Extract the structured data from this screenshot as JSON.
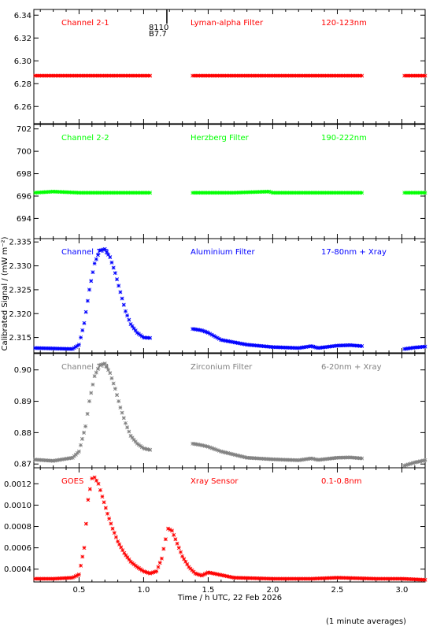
{
  "figure": {
    "ylabel": "Calibrated Signal / (mW m⁻²)",
    "xlabel": "Time / h UTC, 22 Feb 2026",
    "footnote": "(1 minute averages)",
    "xlim": [
      0.15,
      3.18
    ],
    "xticks": [
      "0.5",
      "1.0",
      "1.5",
      "2.0",
      "2.5",
      "3.0"
    ],
    "event_marker": {
      "x": 1.18,
      "labels": [
        "8110",
        "B7.7"
      ]
    }
  },
  "chart_data": [
    {
      "type": "scatter",
      "labels": [
        "Channel 2-1",
        "Lyman-alpha Filter",
        "120-123nm"
      ],
      "color": "#ff0000",
      "ylim": [
        6.245,
        6.345
      ],
      "yticks": [
        "6.34",
        "6.32",
        "6.30",
        "6.28",
        "6.26"
      ],
      "series": [
        {
          "x": [
            0.16,
            0.5,
            0.8,
            1.05
          ],
          "y": [
            6.287,
            6.287,
            6.287,
            6.287
          ]
        },
        {
          "x": [
            1.38,
            1.7,
            2.0,
            2.3,
            2.69
          ],
          "y": [
            6.287,
            6.287,
            6.287,
            6.287,
            6.287
          ]
        },
        {
          "x": [
            3.02,
            3.18
          ],
          "y": [
            6.287,
            6.287
          ]
        }
      ]
    },
    {
      "type": "scatter",
      "labels": [
        "Channel 2-2",
        "Herzberg Filter",
        "190-222nm"
      ],
      "color": "#00ff00",
      "ylim": [
        692.2,
        702.4
      ],
      "yticks": [
        "702",
        "700",
        "698",
        "696",
        "694"
      ],
      "series": [
        {
          "x": [
            0.16,
            0.3,
            0.5,
            0.8,
            1.05
          ],
          "y": [
            696.3,
            696.4,
            696.3,
            696.3,
            696.3
          ]
        },
        {
          "x": [
            1.38,
            1.7,
            1.97,
            2.0,
            2.3,
            2.69
          ],
          "y": [
            696.3,
            696.3,
            696.4,
            696.3,
            696.3,
            696.3
          ]
        },
        {
          "x": [
            3.02,
            3.18
          ],
          "y": [
            696.3,
            696.3
          ]
        }
      ]
    },
    {
      "type": "scatter",
      "labels": [
        "Channel 2-3",
        "Aluminium Filter",
        "17-80nm + Xray"
      ],
      "color": "#0000ff",
      "ylim": [
        2.3118,
        2.3357
      ],
      "yticks": [
        "2.335",
        "2.330",
        "2.325",
        "2.320",
        "2.315"
      ],
      "series": [
        {
          "x": [
            0.16,
            0.3,
            0.45,
            0.5,
            0.54,
            0.58,
            0.62,
            0.66,
            0.7,
            0.74,
            0.78,
            0.82,
            0.86,
            0.9,
            0.95,
            1.0,
            1.05
          ],
          "y": [
            2.3128,
            2.3127,
            2.3126,
            2.3135,
            2.318,
            2.325,
            2.3305,
            2.3332,
            2.3335,
            2.3318,
            2.3285,
            2.3245,
            2.3205,
            2.3178,
            2.316,
            2.315,
            2.3149
          ]
        },
        {
          "x": [
            1.38,
            1.45,
            1.5,
            1.6,
            1.8,
            2.0,
            2.2,
            2.3,
            2.35,
            2.5,
            2.6,
            2.69
          ],
          "y": [
            2.3168,
            2.3165,
            2.316,
            2.3145,
            2.3135,
            2.313,
            2.3128,
            2.3132,
            2.3128,
            2.3133,
            2.3134,
            2.3132
          ]
        },
        {
          "x": [
            3.02,
            3.1,
            3.18
          ],
          "y": [
            2.3126,
            2.3129,
            2.3131
          ]
        }
      ]
    },
    {
      "type": "scatter",
      "labels": [
        "Channel 2-4",
        "Zirconium Filter",
        "6-20nm + Xray"
      ],
      "color": "#808080",
      "ylim": [
        0.8688,
        0.9052
      ],
      "yticks": [
        "0.90",
        "0.89",
        "0.88",
        "0.87"
      ],
      "series": [
        {
          "x": [
            0.16,
            0.3,
            0.45,
            0.5,
            0.55,
            0.58,
            0.62,
            0.66,
            0.7,
            0.74,
            0.78,
            0.82,
            0.86,
            0.9,
            0.95,
            1.0,
            1.05
          ],
          "y": [
            0.8714,
            0.871,
            0.872,
            0.874,
            0.882,
            0.89,
            0.898,
            0.9015,
            0.902,
            0.899,
            0.894,
            0.888,
            0.883,
            0.879,
            0.8765,
            0.875,
            0.8745
          ]
        },
        {
          "x": [
            1.38,
            1.45,
            1.5,
            1.6,
            1.8,
            2.0,
            2.2,
            2.3,
            2.35,
            2.5,
            2.6,
            2.69
          ],
          "y": [
            0.8765,
            0.876,
            0.8755,
            0.874,
            0.872,
            0.8715,
            0.8712,
            0.8718,
            0.8713,
            0.872,
            0.8721,
            0.8718
          ]
        },
        {
          "x": [
            3.02,
            3.1,
            3.18
          ],
          "y": [
            0.8695,
            0.8705,
            0.8712
          ]
        }
      ]
    },
    {
      "type": "scatter",
      "labels": [
        "GOES",
        "Xray Sensor",
        "0.1-0.8nm"
      ],
      "color": "#ff0000",
      "ylim": [
        0.00028,
        0.00135
      ],
      "yticks": [
        "0.0012",
        "0.0010",
        "0.0008",
        "0.0006",
        "0.0004"
      ],
      "series": [
        {
          "x": [
            0.16,
            0.3,
            0.45,
            0.5,
            0.54,
            0.57,
            0.6,
            0.62,
            0.65,
            0.68,
            0.72,
            0.76,
            0.8,
            0.85,
            0.9,
            0.95,
            1.0,
            1.05,
            1.1,
            1.14,
            1.17,
            1.19,
            1.22,
            1.26,
            1.3,
            1.35,
            1.4,
            1.45,
            1.5,
            1.7,
            2.0,
            2.3,
            2.5,
            2.8,
            3.0,
            3.18
          ],
          "y": [
            0.00031,
            0.00031,
            0.00032,
            0.00035,
            0.0006,
            0.00105,
            0.00125,
            0.00126,
            0.0012,
            0.00108,
            0.00092,
            0.00078,
            0.00066,
            0.00055,
            0.00047,
            0.00042,
            0.00038,
            0.00036,
            0.00038,
            0.0005,
            0.00068,
            0.00078,
            0.00076,
            0.00064,
            0.00052,
            0.00042,
            0.00036,
            0.00034,
            0.00037,
            0.00032,
            0.00031,
            0.00031,
            0.00032,
            0.00031,
            0.00031,
            0.0003
          ]
        }
      ]
    }
  ]
}
